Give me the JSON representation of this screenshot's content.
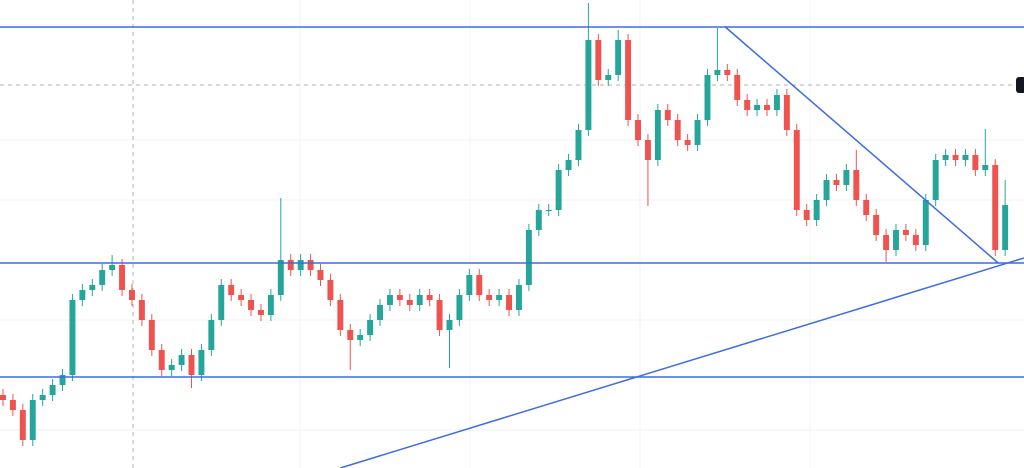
{
  "chart_data": {
    "type": "candlestick",
    "up_color": "#26a69a",
    "down_color": "#ef5350",
    "line_color": "#3d6be6",
    "xlim": [
      -0.3,
      102.9
    ],
    "ylim": [
      0,
      468
    ],
    "open": [
      73,
      68,
      58,
      28,
      68,
      73,
      83,
      93,
      168,
      178,
      183,
      198,
      203,
      178,
      168,
      148,
      118,
      98,
      103,
      113,
      93,
      118,
      148,
      183,
      173,
      168,
      158,
      153,
      173,
      208,
      198,
      208,
      198,
      188,
      168,
      138,
      128,
      133,
      148,
      163,
      173,
      168,
      163,
      173,
      168,
      138,
      148,
      173,
      193,
      173,
      168,
      173,
      158,
      183,
      238,
      258,
      258,
      298,
      308,
      338,
      428,
      388,
      393,
      428,
      348,
      328,
      308,
      358,
      348,
      328,
      323,
      348,
      393,
      398,
      393,
      368,
      358,
      363,
      358,
      373,
      338,
      258,
      248,
      268,
      288,
      283,
      298,
      268,
      253,
      233,
      218,
      238,
      233,
      223,
      268,
      308,
      313,
      308,
      313,
      298,
      303,
      218
    ],
    "high": [
      79,
      74,
      64,
      74,
      79,
      89,
      99,
      174,
      184,
      189,
      204,
      213,
      209,
      184,
      174,
      154,
      124,
      109,
      119,
      119,
      124,
      154,
      189,
      189,
      179,
      174,
      164,
      179,
      270,
      214,
      214,
      214,
      204,
      194,
      174,
      144,
      139,
      154,
      169,
      179,
      179,
      174,
      179,
      179,
      174,
      154,
      179,
      199,
      199,
      179,
      179,
      179,
      189,
      244,
      264,
      264,
      304,
      314,
      344,
      465,
      434,
      399,
      438,
      434,
      354,
      334,
      364,
      364,
      354,
      334,
      354,
      399,
      440,
      404,
      399,
      374,
      369,
      369,
      379,
      379,
      344,
      264,
      274,
      294,
      294,
      304,
      318,
      274,
      259,
      239,
      244,
      244,
      239,
      274,
      314,
      319,
      319,
      319,
      319,
      339,
      309,
      288
    ],
    "low": [
      62,
      52,
      22,
      22,
      62,
      67,
      77,
      87,
      162,
      172,
      177,
      192,
      172,
      162,
      142,
      112,
      92,
      92,
      97,
      80,
      87,
      112,
      142,
      167,
      162,
      152,
      147,
      147,
      167,
      192,
      192,
      192,
      182,
      162,
      132,
      98,
      122,
      127,
      142,
      157,
      162,
      157,
      157,
      162,
      132,
      100,
      142,
      167,
      167,
      162,
      162,
      152,
      152,
      177,
      232,
      252,
      252,
      292,
      302,
      332,
      382,
      382,
      387,
      342,
      322,
      262,
      302,
      342,
      322,
      317,
      317,
      342,
      387,
      387,
      362,
      352,
      352,
      352,
      352,
      332,
      252,
      242,
      242,
      262,
      277,
      277,
      262,
      247,
      227,
      206,
      212,
      227,
      217,
      217,
      262,
      302,
      302,
      302,
      292,
      292,
      212,
      212
    ],
    "close": [
      68,
      58,
      28,
      68,
      73,
      83,
      93,
      168,
      178,
      183,
      198,
      203,
      178,
      168,
      148,
      118,
      98,
      103,
      113,
      93,
      118,
      148,
      183,
      173,
      168,
      158,
      153,
      173,
      208,
      198,
      208,
      198,
      188,
      168,
      138,
      128,
      133,
      148,
      163,
      173,
      168,
      163,
      173,
      168,
      138,
      148,
      173,
      193,
      173,
      168,
      173,
      158,
      183,
      238,
      258,
      258,
      298,
      308,
      338,
      428,
      388,
      393,
      428,
      348,
      328,
      308,
      358,
      348,
      328,
      323,
      348,
      393,
      398,
      393,
      368,
      358,
      363,
      358,
      373,
      338,
      258,
      248,
      268,
      288,
      283,
      298,
      268,
      253,
      233,
      218,
      238,
      233,
      223,
      268,
      308,
      313,
      308,
      313,
      298,
      303,
      218,
      263
    ],
    "levels": [
      441,
      205,
      91
    ],
    "trendlines": [
      {
        "x": [
          72.8,
          100.3
        ],
        "values": [
          441,
          205
        ]
      },
      {
        "x": [
          34,
          102.9
        ],
        "values": [
          0,
          210
        ]
      }
    ]
  }
}
